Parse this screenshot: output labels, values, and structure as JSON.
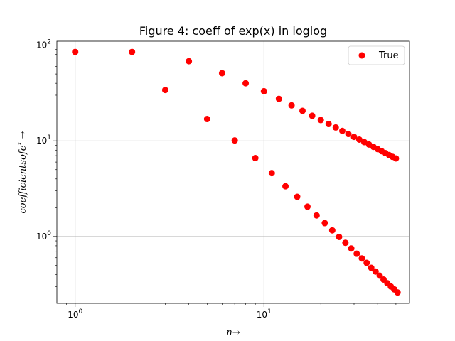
{
  "chart_data": {
    "type": "scatter",
    "title": "Figure 4: coeff of exp(x) in loglog",
    "xlabel": "n→",
    "ylabel": "coefficients of e^x →",
    "xscale": "log",
    "yscale": "log",
    "xlim": [
      0.8,
      59
    ],
    "ylim": [
      0.2,
      110
    ],
    "grid": true,
    "legend": {
      "placement": "top-right",
      "entries": [
        "True"
      ]
    },
    "x_ticks": [
      {
        "value": 1,
        "base": "10",
        "exp": "0"
      },
      {
        "value": 10,
        "base": "10",
        "exp": "1"
      }
    ],
    "y_ticks": [
      {
        "value": 1,
        "base": "10",
        "exp": "0"
      },
      {
        "value": 10,
        "base": "10",
        "exp": "1"
      },
      {
        "value": 100,
        "base": "10",
        "exp": "2"
      }
    ],
    "series": [
      {
        "name": "True",
        "color": "#ff0000",
        "x": [
          1,
          2,
          3,
          4,
          5,
          6,
          7,
          8,
          9,
          10,
          11,
          12,
          13,
          14,
          15,
          16,
          17,
          18,
          19,
          20,
          21,
          22,
          23,
          24,
          25,
          26,
          27,
          28,
          29,
          30,
          31,
          32,
          33,
          34,
          35,
          36,
          37,
          38,
          39,
          40,
          41,
          42,
          43,
          44,
          45,
          46,
          47,
          48,
          49,
          50,
          51
        ],
        "y": [
          85,
          85,
          34,
          68,
          16.9,
          51,
          10.1,
          40,
          6.6,
          33,
          4.6,
          27.5,
          3.35,
          23.5,
          2.6,
          20.6,
          2.05,
          18.3,
          1.66,
          16.5,
          1.38,
          15,
          1.16,
          13.8,
          0.99,
          12.7,
          0.86,
          11.8,
          0.75,
          11,
          0.66,
          10.3,
          0.59,
          9.7,
          0.53,
          9.15,
          0.47,
          8.65,
          0.43,
          8.2,
          0.39,
          7.8,
          0.355,
          7.45,
          0.325,
          7.1,
          0.3,
          6.8,
          0.28,
          6.55,
          0.26
        ]
      }
    ]
  }
}
